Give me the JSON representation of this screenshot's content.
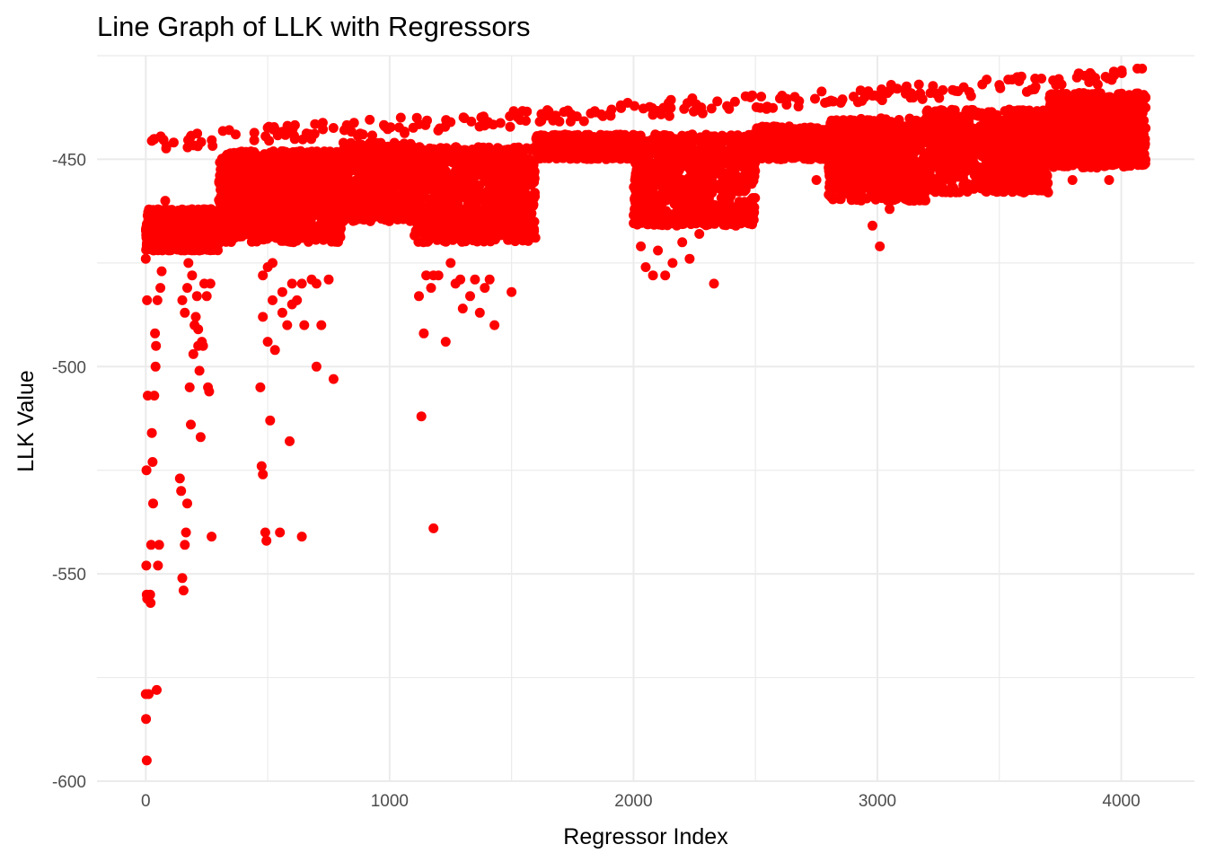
{
  "chart_data": {
    "type": "scatter",
    "title": "Line Graph of LLK with Regressors",
    "xlabel": "Regressor Index",
    "ylabel": "LLK Value",
    "xlim": [
      -200,
      4300
    ],
    "ylim": [
      -600,
      -425
    ],
    "x_ticks": [
      0,
      1000,
      2000,
      3000,
      4000
    ],
    "x_tick_labels": [
      "0",
      "1000",
      "2000",
      "3000",
      "4000"
    ],
    "y_ticks": [
      -450,
      -500,
      -550,
      -600
    ],
    "y_tick_labels": [
      "-450",
      "-500",
      "-550",
      "-600"
    ],
    "grid": true,
    "legend": "none",
    "point_color": "#ff0000",
    "points": [
      [
        0,
        -474
      ],
      [
        5,
        -484
      ],
      [
        8,
        -507
      ],
      [
        3,
        -525
      ],
      [
        2,
        -548
      ],
      [
        4,
        -555
      ],
      [
        6,
        -556
      ],
      [
        0,
        -579
      ],
      [
        1,
        -585
      ],
      [
        4,
        -595
      ],
      [
        12,
        -579
      ],
      [
        20,
        -557
      ],
      [
        18,
        -555
      ],
      [
        22,
        -543
      ],
      [
        30,
        -533
      ],
      [
        28,
        -523
      ],
      [
        35,
        -507
      ],
      [
        40,
        -500
      ],
      [
        42,
        -495
      ],
      [
        38,
        -492
      ],
      [
        25,
        -516
      ],
      [
        45,
        -578
      ],
      [
        50,
        -548
      ],
      [
        55,
        -543
      ],
      [
        48,
        -484
      ],
      [
        60,
        -481
      ],
      [
        65,
        -477
      ],
      [
        70,
        -470
      ],
      [
        75,
        -465
      ],
      [
        80,
        -460
      ],
      [
        140,
        -527
      ],
      [
        145,
        -530
      ],
      [
        150,
        -551
      ],
      [
        155,
        -554
      ],
      [
        160,
        -543
      ],
      [
        165,
        -540
      ],
      [
        170,
        -533
      ],
      [
        180,
        -505
      ],
      [
        185,
        -514
      ],
      [
        195,
        -497
      ],
      [
        200,
        -490
      ],
      [
        210,
        -483
      ],
      [
        215,
        -495
      ],
      [
        220,
        -501
      ],
      [
        225,
        -517
      ],
      [
        230,
        -494
      ],
      [
        235,
        -495
      ],
      [
        250,
        -483
      ],
      [
        260,
        -506
      ],
      [
        270,
        -541
      ],
      [
        160,
        -487
      ],
      [
        175,
        -475
      ],
      [
        190,
        -478
      ],
      [
        205,
        -488
      ],
      [
        215,
        -491
      ],
      [
        240,
        -480
      ],
      [
        265,
        -480
      ],
      [
        255,
        -505
      ],
      [
        150,
        -484
      ],
      [
        170,
        -481
      ],
      [
        470,
        -505
      ],
      [
        475,
        -524
      ],
      [
        480,
        -526
      ],
      [
        490,
        -540
      ],
      [
        495,
        -542
      ],
      [
        510,
        -513
      ],
      [
        550,
        -540
      ],
      [
        640,
        -541
      ],
      [
        590,
        -518
      ],
      [
        700,
        -500
      ],
      [
        480,
        -488
      ],
      [
        500,
        -476
      ],
      [
        520,
        -484
      ],
      [
        560,
        -487
      ],
      [
        600,
        -480
      ],
      [
        620,
        -484
      ],
      [
        650,
        -490
      ],
      [
        680,
        -479
      ],
      [
        720,
        -490
      ],
      [
        770,
        -503
      ],
      [
        500,
        -494
      ],
      [
        530,
        -496
      ],
      [
        580,
        -490
      ],
      [
        600,
        -485
      ],
      [
        640,
        -480
      ],
      [
        700,
        -480
      ],
      [
        750,
        -479
      ],
      [
        480,
        -478
      ],
      [
        520,
        -475
      ],
      [
        560,
        -482
      ],
      [
        1130,
        -512
      ],
      [
        1180,
        -539
      ],
      [
        1140,
        -492
      ],
      [
        1230,
        -494
      ],
      [
        1120,
        -483
      ],
      [
        1150,
        -478
      ],
      [
        1170,
        -481
      ],
      [
        1200,
        -478
      ],
      [
        1250,
        -475
      ],
      [
        1290,
        -479
      ],
      [
        1300,
        -486
      ],
      [
        1350,
        -479
      ],
      [
        1390,
        -481
      ],
      [
        1430,
        -490
      ],
      [
        1500,
        -482
      ],
      [
        1330,
        -483
      ],
      [
        1370,
        -487
      ],
      [
        1410,
        -479
      ],
      [
        1180,
        -478
      ],
      [
        1270,
        -480
      ],
      [
        2030,
        -471
      ],
      [
        2050,
        -476
      ],
      [
        2080,
        -478
      ],
      [
        2130,
        -478
      ],
      [
        2200,
        -470
      ],
      [
        2230,
        -474
      ],
      [
        2330,
        -480
      ],
      [
        2270,
        -468
      ],
      [
        2100,
        -472
      ],
      [
        2160,
        -475
      ],
      [
        3010,
        -471
      ],
      [
        2980,
        -466
      ],
      [
        2750,
        -455
      ],
      [
        2800,
        -452
      ],
      [
        2900,
        -458
      ],
      [
        3050,
        -462
      ],
      [
        3150,
        -460
      ],
      [
        3300,
        -458
      ],
      [
        3450,
        -456
      ],
      [
        3600,
        -458
      ],
      [
        3700,
        -458
      ],
      [
        3800,
        -455
      ],
      [
        3900,
        -452
      ],
      [
        3950,
        -455
      ],
      [
        4000,
        -451
      ],
      [
        4050,
        -450
      ],
      [
        3850,
        -447
      ],
      [
        3750,
        -449
      ],
      [
        3650,
        -452
      ],
      [
        3550,
        -455
      ]
    ]
  }
}
